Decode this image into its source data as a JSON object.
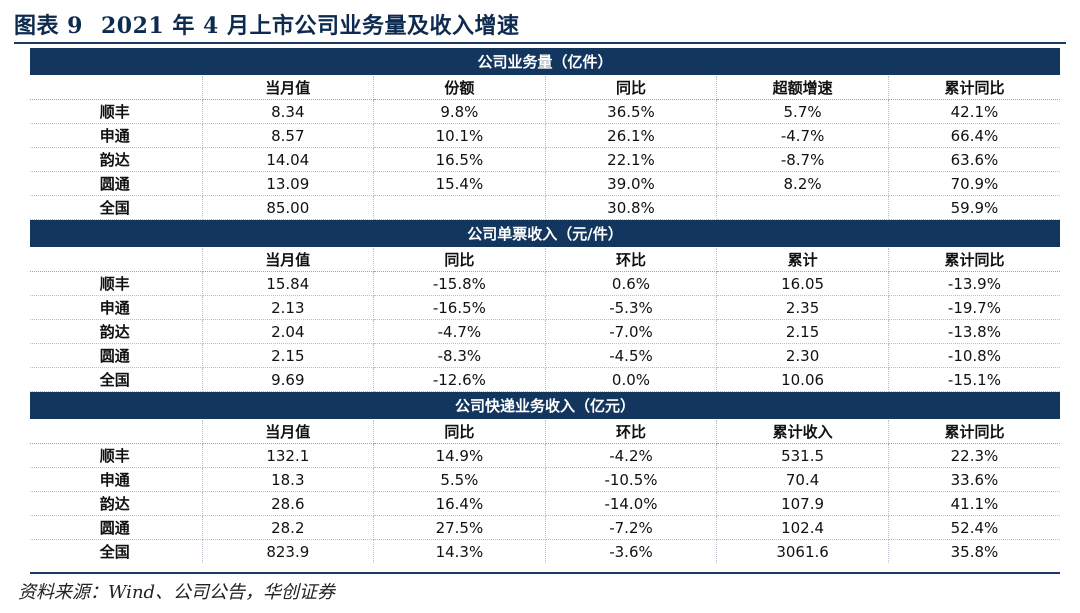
{
  "figure": {
    "number": "图表 9",
    "title": "2021 年 4 月上市公司业务量及收入增速"
  },
  "sections": [
    {
      "title": "公司业务量（亿件）",
      "headers": [
        "",
        "当月值",
        "份额",
        "同比",
        "超额增速",
        "累计同比"
      ],
      "rows": [
        [
          "顺丰",
          "8.34",
          "9.8%",
          "36.5%",
          "5.7%",
          "42.1%"
        ],
        [
          "申通",
          "8.57",
          "10.1%",
          "26.1%",
          "-4.7%",
          "66.4%"
        ],
        [
          "韵达",
          "14.04",
          "16.5%",
          "22.1%",
          "-8.7%",
          "63.6%"
        ],
        [
          "圆通",
          "13.09",
          "15.4%",
          "39.0%",
          "8.2%",
          "70.9%"
        ],
        [
          "全国",
          "85.00",
          "",
          "30.8%",
          "",
          "59.9%"
        ]
      ]
    },
    {
      "title": "公司单票收入（元/件）",
      "headers": [
        "",
        "当月值",
        "同比",
        "环比",
        "累计",
        "累计同比"
      ],
      "rows": [
        [
          "顺丰",
          "15.84",
          "-15.8%",
          "0.6%",
          "16.05",
          "-13.9%"
        ],
        [
          "申通",
          "2.13",
          "-16.5%",
          "-5.3%",
          "2.35",
          "-19.7%"
        ],
        [
          "韵达",
          "2.04",
          "-4.7%",
          "-7.0%",
          "2.15",
          "-13.8%"
        ],
        [
          "圆通",
          "2.15",
          "-8.3%",
          "-4.5%",
          "2.30",
          "-10.8%"
        ],
        [
          "全国",
          "9.69",
          "-12.6%",
          "0.0%",
          "10.06",
          "-15.1%"
        ]
      ]
    },
    {
      "title": "公司快递业务收入（亿元）",
      "headers": [
        "",
        "当月值",
        "同比",
        "环比",
        "累计收入",
        "累计同比"
      ],
      "rows": [
        [
          "顺丰",
          "132.1",
          "14.9%",
          "-4.2%",
          "531.5",
          "22.3%"
        ],
        [
          "申通",
          "18.3",
          "5.5%",
          "-10.5%",
          "70.4",
          "33.6%"
        ],
        [
          "韵达",
          "28.6",
          "16.4%",
          "-14.0%",
          "107.9",
          "41.1%"
        ],
        [
          "圆通",
          "28.2",
          "27.5%",
          "-7.2%",
          "102.4",
          "52.4%"
        ],
        [
          "全国",
          "823.9",
          "14.3%",
          "-3.6%",
          "3061.6",
          "35.8%"
        ]
      ]
    }
  ],
  "source": "资料来源：Wind、公司公告，华创证券",
  "colors": {
    "section_header_bg": "#13365f",
    "title_color": "#0d2a4f"
  }
}
